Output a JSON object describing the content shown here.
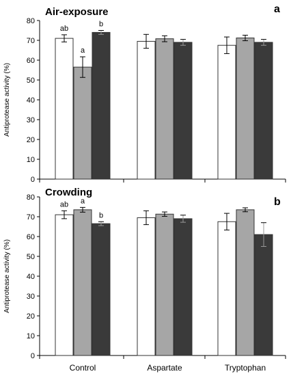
{
  "chart_data": [
    {
      "type": "bar",
      "title": "Air-exposure",
      "panel_label": "a",
      "ylabel": "Antiprotease activity (%)",
      "ylim": [
        0,
        80
      ],
      "yticks": [
        0,
        10,
        20,
        30,
        40,
        50,
        60,
        70,
        80
      ],
      "categories": [
        "Control",
        "Aspartate",
        "Tryptophan"
      ],
      "grid": false,
      "series": [
        {
          "color": "#ffffff",
          "values": [
            71,
            69.5,
            67.5
          ],
          "errors": [
            1.8,
            3.5,
            4.2
          ],
          "labels": [
            "ab",
            "",
            ""
          ]
        },
        {
          "color": "#a6a6a6",
          "values": [
            56.5,
            70.8,
            71.2
          ],
          "errors": [
            5.2,
            1.5,
            1.4
          ],
          "labels": [
            "a",
            "",
            ""
          ]
        },
        {
          "color": "#3a3a3a",
          "values": [
            74,
            69,
            69
          ],
          "errors": [
            1.0,
            1.5,
            1.5
          ],
          "labels": [
            "b",
            "",
            ""
          ]
        }
      ]
    },
    {
      "type": "bar",
      "title": "Crowding",
      "panel_label": "b",
      "ylabel": "Antiprotease activity (%)",
      "ylim": [
        0,
        80
      ],
      "yticks": [
        0,
        10,
        20,
        30,
        40,
        50,
        60,
        70,
        80
      ],
      "categories": [
        "Control",
        "Aspartate",
        "Tryptophan"
      ],
      "grid": false,
      "series": [
        {
          "color": "#ffffff",
          "values": [
            71,
            69.5,
            67.5
          ],
          "errors": [
            2.0,
            3.5,
            4.2
          ],
          "labels": [
            "ab",
            "",
            ""
          ]
        },
        {
          "color": "#a6a6a6",
          "values": [
            73.5,
            71.3,
            73.5
          ],
          "errors": [
            1.2,
            1.1,
            1.0
          ],
          "labels": [
            "a",
            "",
            ""
          ]
        },
        {
          "color": "#3a3a3a",
          "values": [
            66.5,
            69,
            61
          ],
          "errors": [
            1.0,
            1.8,
            6.0
          ],
          "labels": [
            "b",
            "",
            ""
          ]
        }
      ]
    }
  ]
}
